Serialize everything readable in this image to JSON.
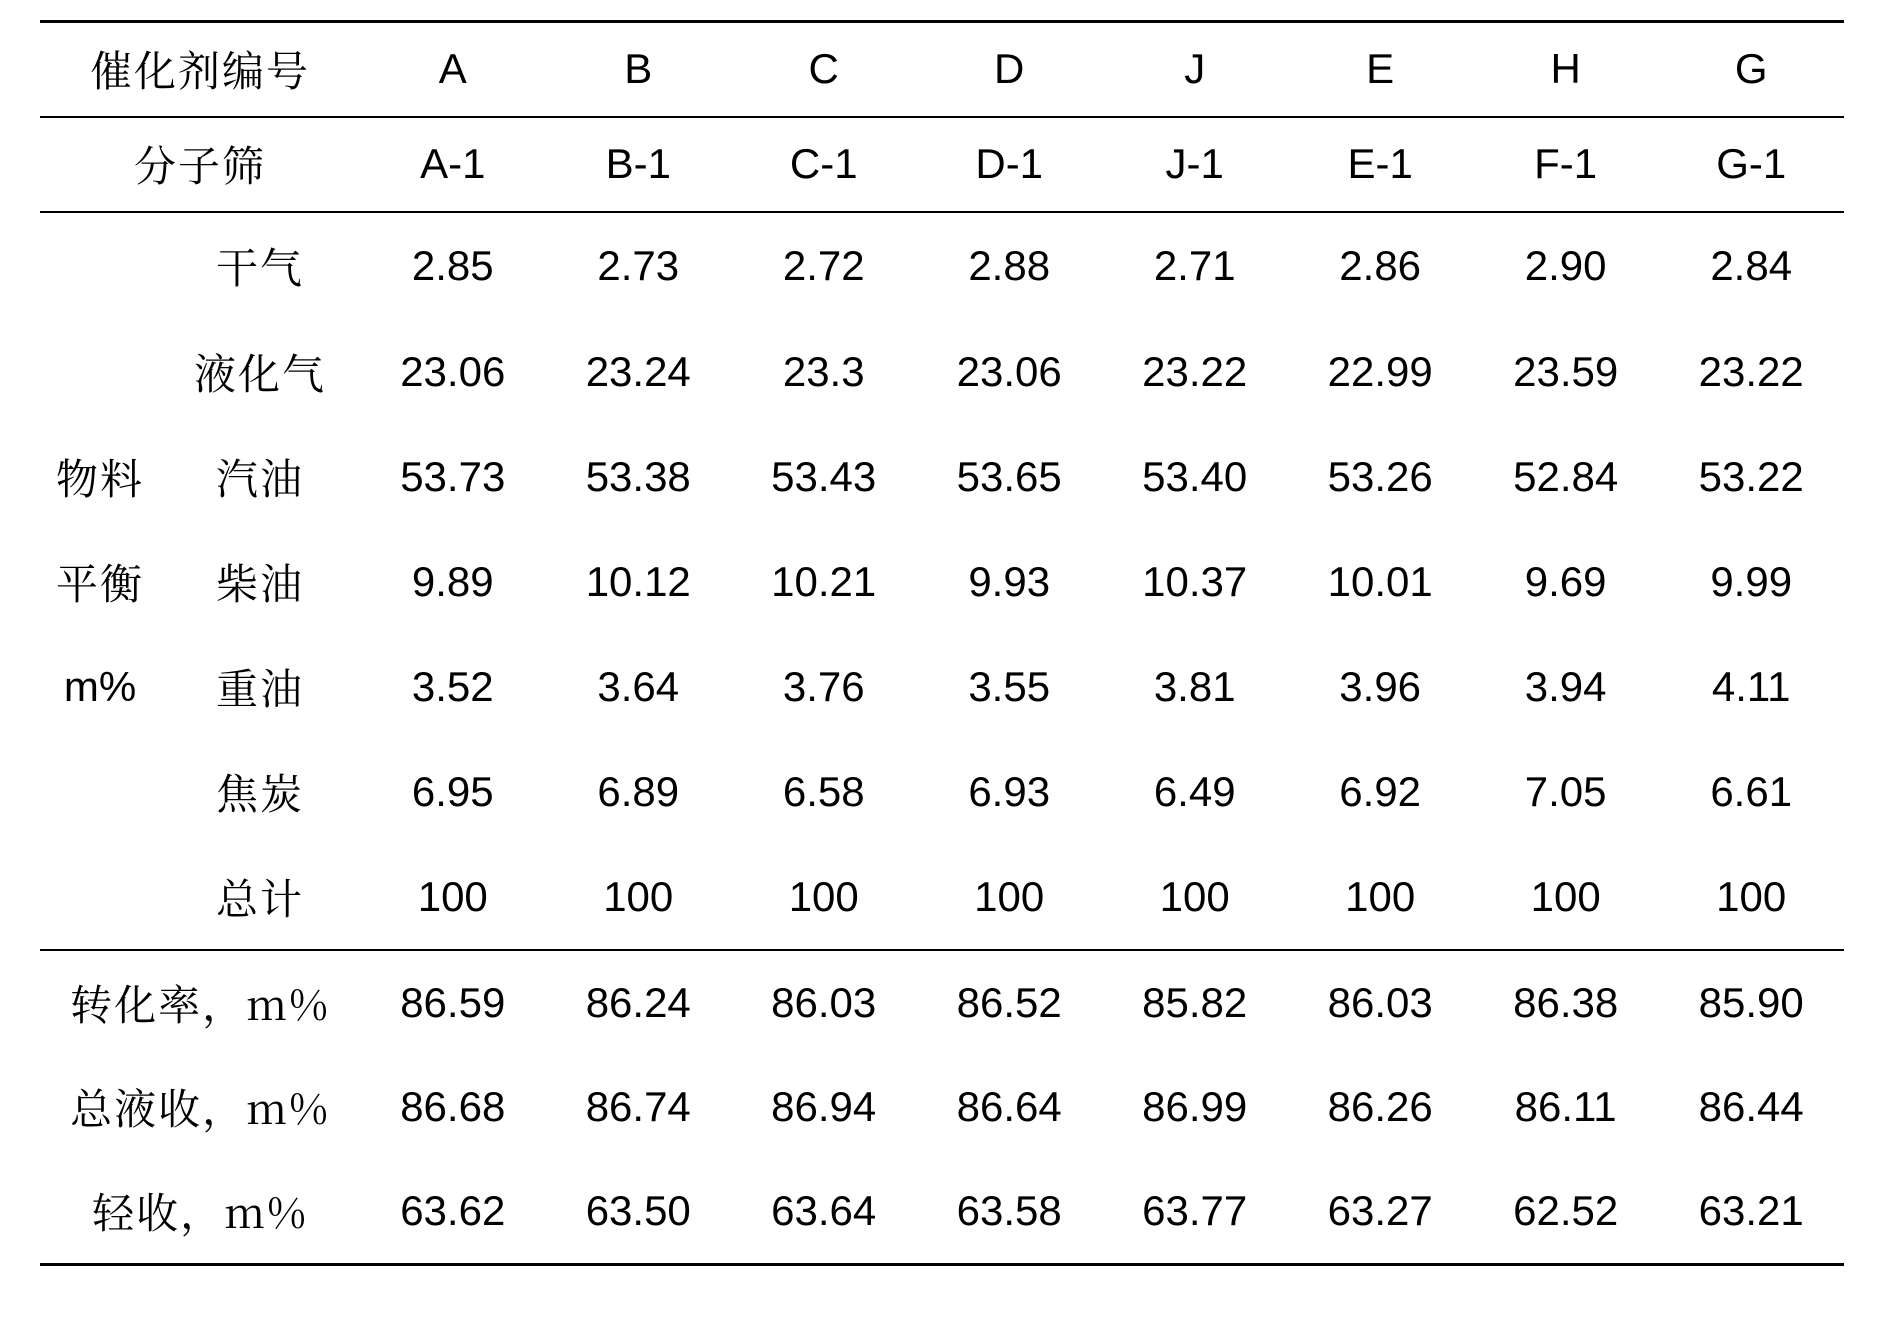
{
  "table": {
    "background_color": "#ffffff",
    "text_color": "#000000",
    "rule_color": "#000000",
    "cjk_fontsize": 42,
    "latin_fontsize": 42,
    "header1_label": "催化剂编号",
    "header2_label": "分子筛",
    "col_headers": [
      "A",
      "B",
      "C",
      "D",
      "J",
      "E",
      "H",
      "G"
    ],
    "sieve_labels": [
      "A-1",
      "B-1",
      "C-1",
      "D-1",
      "J-1",
      "E-1",
      "F-1",
      "G-1"
    ],
    "body_group_label_lines": [
      "物料",
      "平衡",
      "m%"
    ],
    "body_rows": [
      {
        "label": "干气",
        "values": [
          "2.85",
          "2.73",
          "2.72",
          "2.88",
          "2.71",
          "2.86",
          "2.90",
          "2.84"
        ]
      },
      {
        "label": "液化气",
        "values": [
          "23.06",
          "23.24",
          "23.3",
          "23.06",
          "23.22",
          "22.99",
          "23.59",
          "23.22"
        ]
      },
      {
        "label": "汽油",
        "values": [
          "53.73",
          "53.38",
          "53.43",
          "53.65",
          "53.40",
          "53.26",
          "52.84",
          "53.22"
        ]
      },
      {
        "label": "柴油",
        "values": [
          "9.89",
          "10.12",
          "10.21",
          "9.93",
          "10.37",
          "10.01",
          "9.69",
          "9.99"
        ]
      },
      {
        "label": "重油",
        "values": [
          "3.52",
          "3.64",
          "3.76",
          "3.55",
          "3.81",
          "3.96",
          "3.94",
          "4.11"
        ]
      },
      {
        "label": "焦炭",
        "values": [
          "6.95",
          "6.89",
          "6.58",
          "6.93",
          "6.49",
          "6.92",
          "7.05",
          "6.61"
        ]
      },
      {
        "label": "总计",
        "values": [
          "100",
          "100",
          "100",
          "100",
          "100",
          "100",
          "100",
          "100"
        ]
      }
    ],
    "footer_rows": [
      {
        "label": "转化率，m%",
        "values": [
          "86.59",
          "86.24",
          "86.03",
          "86.52",
          "85.82",
          "86.03",
          "86.38",
          "85.90"
        ]
      },
      {
        "label": "总液收，m%",
        "values": [
          "86.68",
          "86.74",
          "86.94",
          "86.64",
          "86.99",
          "86.26",
          "86.11",
          "86.44"
        ]
      },
      {
        "label": "轻收，m%",
        "values": [
          "63.62",
          "63.50",
          "63.64",
          "63.58",
          "63.77",
          "63.27",
          "62.52",
          "63.21"
        ]
      }
    ]
  }
}
